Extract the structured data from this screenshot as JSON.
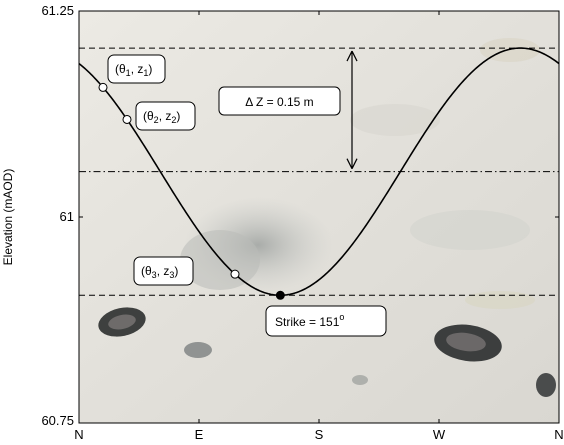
{
  "chart_data": {
    "type": "line",
    "title": "",
    "xlabel": "",
    "ylabel": "Elevation (mAOD)",
    "x_categories": [
      "N",
      "E",
      "S",
      "W",
      "N"
    ],
    "x_range_deg": [
      0,
      360
    ],
    "ylim": [
      60.75,
      61.25
    ],
    "y_ticks": [
      "60.75",
      "61",
      "61.25"
    ],
    "grid": false,
    "background": "photograph of rock surface",
    "series": [
      {
        "kind": "sinusoid",
        "center": 61.055,
        "amplitude": 0.15,
        "trough_azimuth_deg": 151,
        "color": "#000000"
      }
    ],
    "reference_lines": [
      {
        "id": "top",
        "y": 61.205,
        "style": "dashed"
      },
      {
        "id": "mid",
        "y": 61.055,
        "style": "dashdot"
      },
      {
        "id": "bottom",
        "y": 60.905,
        "style": "dashed"
      }
    ],
    "points": [
      {
        "id": "p1",
        "x_deg": 18,
        "label": "(θ1, z1)",
        "filled": false
      },
      {
        "id": "p2",
        "x_deg": 36,
        "label": "(θ2, z2)",
        "filled": false
      },
      {
        "id": "p3",
        "x_deg": 117,
        "label": "(θ3, z3)",
        "filled": false
      },
      {
        "id": "strike",
        "x_deg": 151,
        "label": "Strike = 151°",
        "filled": true
      }
    ],
    "annotations": {
      "delta_z": "Δ Z = 0.15 m",
      "p1_theta": "(θ",
      "p1_theta_sub": "1",
      "p1_z": ", z",
      "p1_z_sub": "1",
      "p1_close": ")",
      "p2_theta": "(θ",
      "p2_theta_sub": "2",
      "p2_z": ", z",
      "p2_z_sub": "2",
      "p2_close": ")",
      "p3_theta": "(θ",
      "p3_theta_sub": "3",
      "p3_z": ", z",
      "p3_z_sub": "3",
      "p3_close": ")",
      "strike_text": "Strike = 151",
      "strike_sup": "o"
    }
  }
}
